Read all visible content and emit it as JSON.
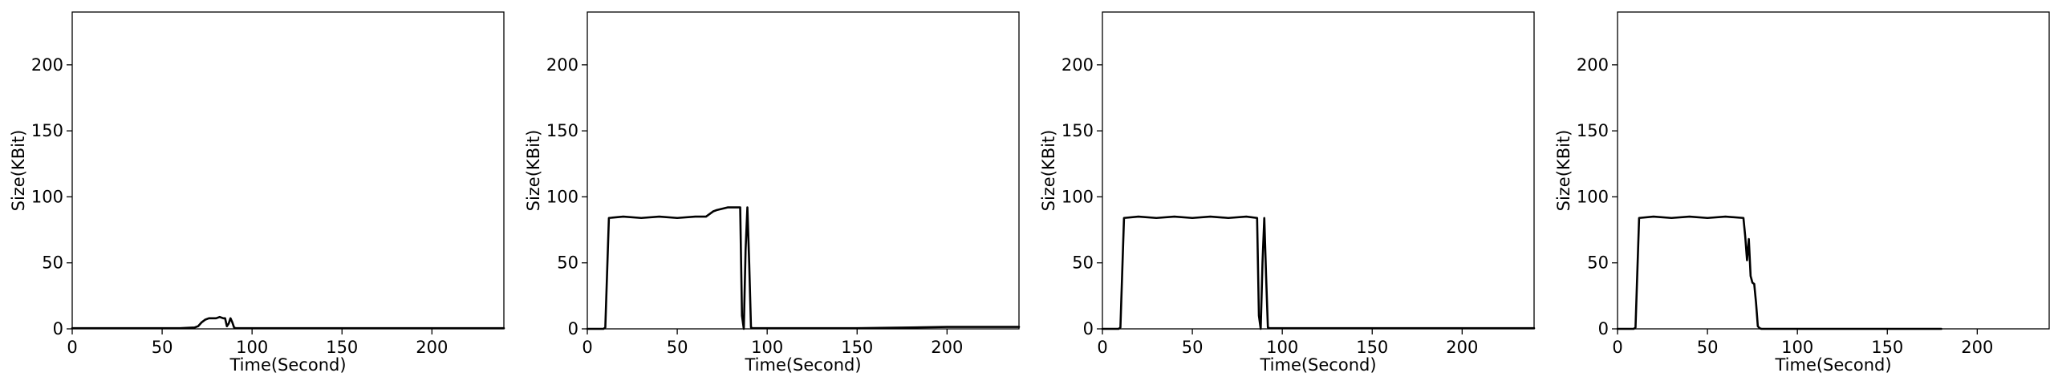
{
  "chart_data": [
    {
      "type": "line",
      "xlabel": "Time(Second)",
      "ylabel": "Size(KBit)",
      "xlim": [
        0,
        240
      ],
      "ylim": [
        0,
        240
      ],
      "xticks": [
        0,
        50,
        100,
        150,
        200
      ],
      "yticks": [
        0,
        50,
        100,
        150,
        200
      ],
      "grid": false,
      "line_color": "#000000",
      "series": [
        {
          "x": [
            0,
            60,
            68,
            70,
            72,
            74,
            76,
            78,
            80,
            82,
            84,
            85,
            86,
            87,
            88,
            89,
            90,
            91,
            92,
            94,
            120,
            180,
            240
          ],
          "y": [
            0.5,
            0.5,
            1,
            2,
            5,
            7,
            8,
            8,
            8,
            9,
            8,
            8,
            2,
            4,
            8,
            5,
            1,
            0.5,
            0.5,
            0.5,
            0.5,
            0.5,
            0.5
          ]
        }
      ]
    },
    {
      "type": "line",
      "xlabel": "Time(Second)",
      "ylabel": "Size(KBit)",
      "xlim": [
        0,
        240
      ],
      "ylim": [
        0,
        240
      ],
      "xticks": [
        0,
        50,
        100,
        150,
        200
      ],
      "yticks": [
        0,
        50,
        100,
        150,
        200
      ],
      "grid": false,
      "line_color": "#000000",
      "series": [
        {
          "x": [
            0,
            9,
            10,
            12,
            20,
            30,
            40,
            50,
            60,
            66,
            68,
            70,
            72,
            75,
            78,
            80,
            84,
            85,
            86,
            87,
            88,
            89,
            90,
            91,
            92,
            100,
            150,
            180,
            200,
            240
          ],
          "y": [
            0,
            0,
            1,
            84,
            85,
            84,
            85,
            84,
            85,
            85,
            87,
            89,
            90,
            91,
            92,
            92,
            92,
            92,
            10,
            0,
            60,
            92,
            50,
            1,
            0.5,
            0.5,
            0.5,
            1,
            1.5,
            1.5
          ]
        }
      ]
    },
    {
      "type": "line",
      "xlabel": "Time(Second)",
      "ylabel": "Size(KBit)",
      "xlim": [
        0,
        240
      ],
      "ylim": [
        0,
        240
      ],
      "xticks": [
        0,
        50,
        100,
        150,
        200
      ],
      "yticks": [
        0,
        50,
        100,
        150,
        200
      ],
      "grid": false,
      "line_color": "#000000",
      "series": [
        {
          "x": [
            0,
            9,
            10,
            12,
            20,
            30,
            40,
            50,
            60,
            70,
            80,
            86,
            87,
            88,
            89,
            90,
            91,
            92,
            93,
            100,
            150,
            200,
            240
          ],
          "y": [
            0,
            0,
            1,
            84,
            85,
            84,
            85,
            84,
            85,
            84,
            85,
            84,
            10,
            0,
            50,
            84,
            40,
            1,
            0.5,
            0.5,
            0.5,
            0.5,
            0.5
          ]
        }
      ]
    },
    {
      "type": "line",
      "xlabel": "Time(Second)",
      "ylabel": "Size(KBit)",
      "xlim": [
        0,
        240
      ],
      "ylim": [
        0,
        240
      ],
      "xticks": [
        0,
        50,
        100,
        150,
        200
      ],
      "yticks": [
        0,
        50,
        100,
        150,
        200
      ],
      "grid": false,
      "line_color": "#000000",
      "series": [
        {
          "x": [
            0,
            9,
            10,
            12,
            20,
            30,
            40,
            50,
            60,
            70,
            71,
            72,
            73,
            74,
            75,
            76,
            77,
            78,
            79,
            80,
            120,
            180
          ],
          "y": [
            0,
            0,
            1,
            84,
            85,
            84,
            85,
            84,
            85,
            84,
            70,
            52,
            68,
            40,
            35,
            34,
            20,
            2,
            0.5,
            0,
            0,
            0
          ]
        }
      ]
    }
  ]
}
